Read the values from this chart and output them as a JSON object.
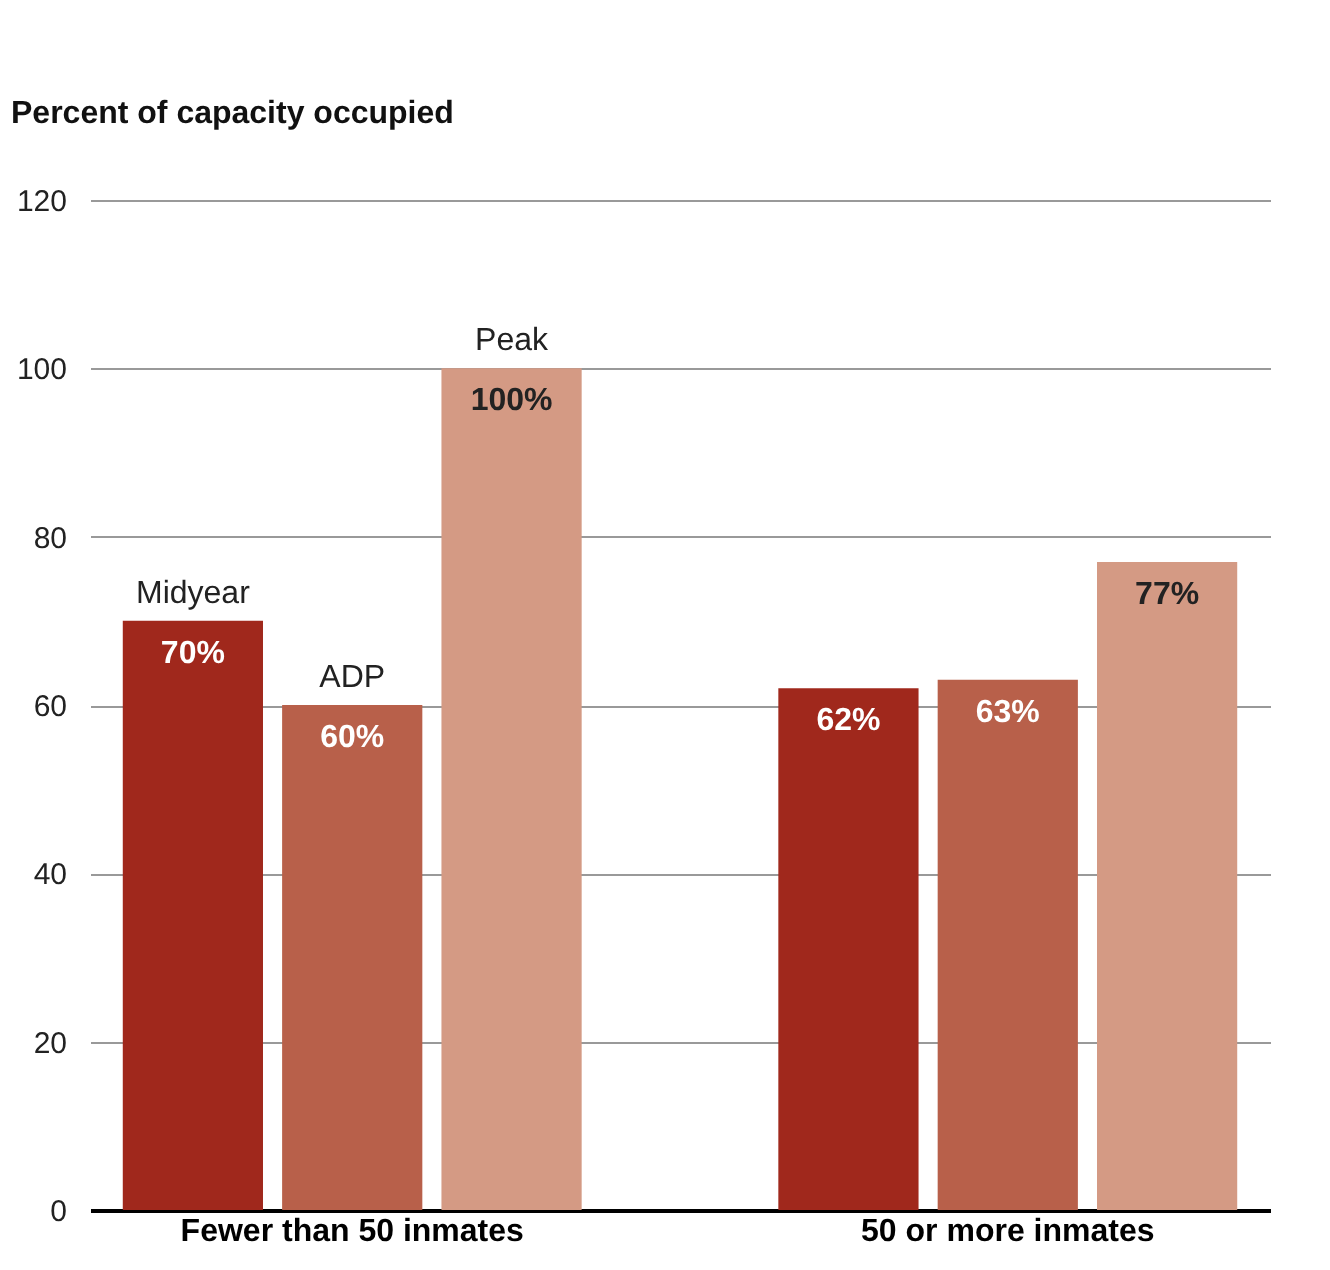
{
  "chart_data": {
    "type": "bar",
    "ylabel": "Percent of capacity occupied",
    "categories": [
      "Fewer than 50 inmates",
      "50 or more inmates"
    ],
    "series": [
      {
        "name": "Midyear",
        "color": "#a0281c",
        "values": [
          70,
          62
        ],
        "value_labels": [
          "70%",
          "62%"
        ]
      },
      {
        "name": "ADP",
        "color": "#b8604a",
        "values": [
          60,
          63
        ],
        "value_labels": [
          "60%",
          "63%"
        ]
      },
      {
        "name": "Peak",
        "color": "#d49a84",
        "values": [
          100,
          77
        ],
        "value_labels": [
          "100%",
          "77%"
        ]
      }
    ],
    "ylim": [
      0,
      120
    ],
    "yticks": [
      0,
      20,
      40,
      60,
      80,
      100,
      120
    ],
    "grid": "y",
    "legend": false
  }
}
